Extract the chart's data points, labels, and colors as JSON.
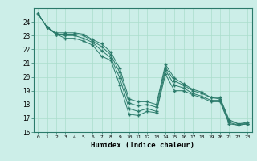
{
  "xlabel": "Humidex (Indice chaleur)",
  "background_color": "#cceee8",
  "grid_color": "#aaddcc",
  "line_color": "#2a7a6a",
  "xlim": [
    -0.5,
    23.5
  ],
  "ylim": [
    16,
    25
  ],
  "yticks": [
    16,
    17,
    18,
    19,
    20,
    21,
    22,
    23,
    24
  ],
  "xticks": [
    0,
    1,
    2,
    3,
    4,
    5,
    6,
    7,
    8,
    9,
    10,
    11,
    12,
    13,
    14,
    15,
    16,
    17,
    18,
    19,
    20,
    21,
    22,
    23
  ],
  "lines": [
    {
      "x": [
        0,
        1,
        2,
        3,
        4,
        5,
        6,
        7,
        8,
        9,
        10,
        11,
        12,
        13,
        14,
        15,
        16,
        17,
        18,
        19,
        20,
        21,
        22,
        23
      ],
      "y": [
        24.6,
        23.6,
        23.1,
        22.8,
        22.8,
        22.6,
        22.3,
        21.5,
        21.2,
        19.4,
        17.3,
        17.2,
        17.5,
        17.4,
        20.2,
        19.0,
        19.0,
        18.7,
        18.5,
        18.2,
        18.2,
        16.6,
        16.5,
        16.6
      ]
    },
    {
      "x": [
        0,
        1,
        2,
        3,
        4,
        5,
        6,
        7,
        8,
        9,
        10,
        11,
        12,
        13,
        14,
        15,
        16,
        17,
        18,
        19,
        20,
        21,
        22,
        23
      ],
      "y": [
        24.6,
        23.6,
        23.1,
        23.0,
        23.0,
        22.8,
        22.5,
        21.9,
        21.4,
        19.9,
        17.7,
        17.5,
        17.7,
        17.5,
        20.5,
        19.4,
        19.2,
        18.8,
        18.6,
        18.3,
        18.3,
        16.7,
        16.5,
        16.6
      ]
    },
    {
      "x": [
        0,
        1,
        2,
        3,
        4,
        5,
        6,
        7,
        8,
        9,
        10,
        11,
        12,
        13,
        14,
        15,
        16,
        17,
        18,
        19,
        20,
        21,
        22,
        23
      ],
      "y": [
        24.6,
        23.6,
        23.1,
        23.1,
        23.1,
        23.0,
        22.6,
        22.2,
        21.6,
        20.3,
        18.1,
        17.9,
        18.0,
        17.8,
        20.7,
        19.7,
        19.4,
        19.0,
        18.8,
        18.5,
        18.4,
        16.8,
        16.6,
        16.6
      ]
    },
    {
      "x": [
        0,
        1,
        2,
        3,
        4,
        5,
        6,
        7,
        8,
        9,
        10,
        11,
        12,
        13,
        14,
        15,
        16,
        17,
        18,
        19,
        20,
        21,
        22,
        23
      ],
      "y": [
        24.6,
        23.6,
        23.2,
        23.2,
        23.2,
        23.1,
        22.7,
        22.4,
        21.8,
        20.6,
        18.4,
        18.2,
        18.2,
        18.0,
        20.9,
        19.9,
        19.5,
        19.1,
        18.9,
        18.5,
        18.5,
        16.9,
        16.6,
        16.7
      ]
    }
  ]
}
